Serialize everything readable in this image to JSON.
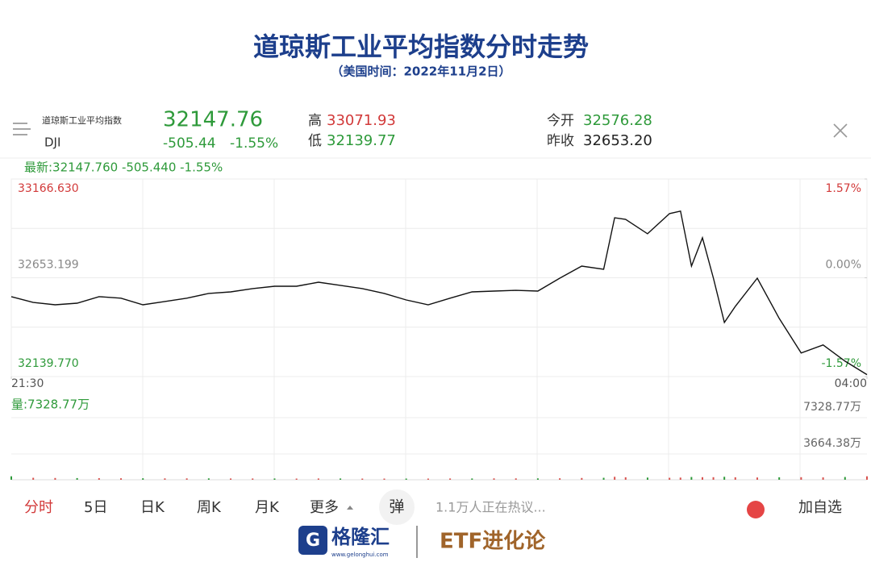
{
  "header": {
    "title": "道琼斯工业平均指数分时走势",
    "subtitle": "（美国时间：2022年11月2日）"
  },
  "quote": {
    "name": "道琼斯工业平均指数",
    "code": "DJI",
    "price": "32147.76",
    "change": "-505.44",
    "change_pct": "-1.55%",
    "high_label": "高",
    "high": "33071.93",
    "low_label": "低",
    "low": "32139.77",
    "open_label": "今开",
    "open": "32576.28",
    "prev_label": "昨收",
    "prev": "32653.20",
    "latest": "最新:32147.760  -505.440  -1.55%",
    "volume": "量:7328.77万"
  },
  "tabs": [
    "分时",
    "5日",
    "日K",
    "周K",
    "月K",
    "更多"
  ],
  "toolbar": {
    "danmu": "弹",
    "discussion": "1.1万人正在热议...",
    "add": "加自选"
  },
  "footer": {
    "brand": "格隆汇",
    "site": "www.gelonghui.com",
    "partner": "ETF进化论"
  },
  "chart_data": [
    {
      "type": "line",
      "color": "#111111",
      "x": [
        "21:30",
        "21:40",
        "21:50",
        "22:00",
        "22:10",
        "22:20",
        "22:30",
        "22:40",
        "22:50",
        "23:00",
        "23:10",
        "23:20",
        "23:30",
        "23:40",
        "23:50",
        "00:00",
        "00:10",
        "00:20",
        "00:30",
        "00:40",
        "00:50",
        "01:00",
        "01:10",
        "01:20",
        "01:30",
        "01:40",
        "01:50",
        "02:00",
        "02:05",
        "02:10",
        "02:20",
        "02:30",
        "02:35",
        "02:40",
        "02:45",
        "02:50",
        "02:55",
        "03:00",
        "03:10",
        "03:20",
        "03:30",
        "03:40",
        "03:50",
        "04:00"
      ],
      "values": [
        32555,
        32525,
        32513,
        32521,
        32555,
        32547,
        32513,
        32530,
        32547,
        32572,
        32580,
        32597,
        32609,
        32609,
        32630,
        32614,
        32597,
        32572,
        32538,
        32513,
        32547,
        32580,
        32584,
        32588,
        32584,
        32651,
        32714,
        32697,
        32965,
        32957,
        32882,
        32987,
        33000,
        32714,
        32861,
        32651,
        32421,
        32505,
        32651,
        32442,
        32262,
        32304,
        32220,
        32150
      ],
      "xticks": [
        "21:30",
        "04:00"
      ],
      "ylim": [
        32139.77,
        33166.63
      ],
      "yticks": [
        {
          "value": 33166.63,
          "label": "33166.630"
        },
        {
          "value": 32653.199,
          "label": "32653.199"
        },
        {
          "value": 32139.77,
          "label": "32139.770"
        }
      ],
      "y2lim": [
        -1.57,
        1.57
      ],
      "y2ticks": [
        {
          "value": 1.57,
          "label": "1.57%"
        },
        {
          "value": 0,
          "label": "0.00%"
        },
        {
          "value": -1.57,
          "label": "-1.57%"
        }
      ],
      "grid": true
    },
    {
      "type": "bar",
      "color": "#d9534f",
      "x": [
        "21:30",
        "21:40",
        "21:50",
        "22:00",
        "22:10",
        "22:20",
        "22:30",
        "22:40",
        "22:50",
        "23:00",
        "23:10",
        "23:20",
        "23:30",
        "23:40",
        "23:50",
        "00:00",
        "00:10",
        "00:20",
        "00:30",
        "00:40",
        "00:50",
        "01:00",
        "01:10",
        "01:20",
        "01:30",
        "01:40",
        "01:50",
        "02:00",
        "02:05",
        "02:10",
        "02:20",
        "02:30",
        "02:35",
        "02:40",
        "02:45",
        "02:50",
        "02:55",
        "03:00",
        "03:10",
        "03:20",
        "03:30",
        "03:40",
        "03:50",
        "04:00"
      ],
      "values": [
        350,
        200,
        180,
        170,
        160,
        150,
        150,
        140,
        140,
        140,
        130,
        130,
        130,
        120,
        130,
        130,
        120,
        120,
        120,
        120,
        130,
        130,
        140,
        140,
        140,
        150,
        180,
        200,
        300,
        250,
        220,
        200,
        220,
        280,
        260,
        260,
        300,
        250,
        230,
        250,
        260,
        240,
        280,
        350
      ],
      "ylim": [
        0,
        7328.77
      ],
      "yticks": [
        {
          "value": 7328.77,
          "label": "7328.77万"
        },
        {
          "value": 3664.38,
          "label": "3664.38万"
        }
      ]
    }
  ]
}
